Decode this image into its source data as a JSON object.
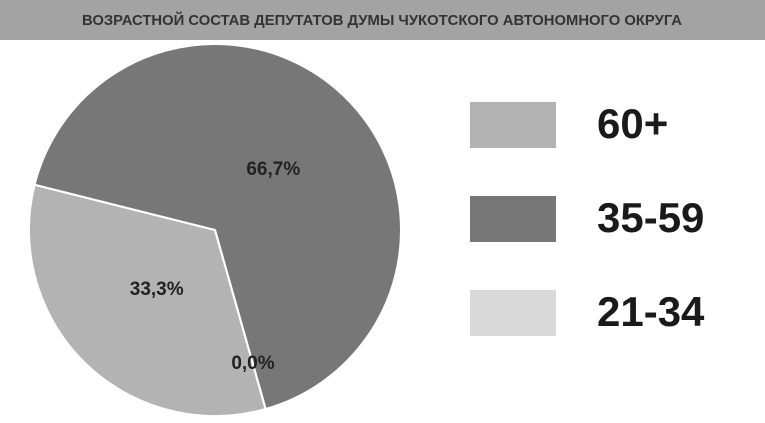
{
  "chart_data": {
    "type": "pie",
    "title": "ВОЗРАСТНОЙ СОСТАВ ДЕПУТАТОВ ДУМЫ ЧУКОТСКОГО АВТОНОМНОГО ОКРУГА",
    "categories": [
      "60+",
      "35-59",
      "21-34"
    ],
    "values": [
      33.3,
      66.7,
      0.0
    ],
    "value_labels": [
      "33,3%",
      "66,7%",
      "0,0%"
    ],
    "colors": [
      "#b3b3b3",
      "#777777",
      "#d9d9d9"
    ],
    "legend": "right"
  }
}
